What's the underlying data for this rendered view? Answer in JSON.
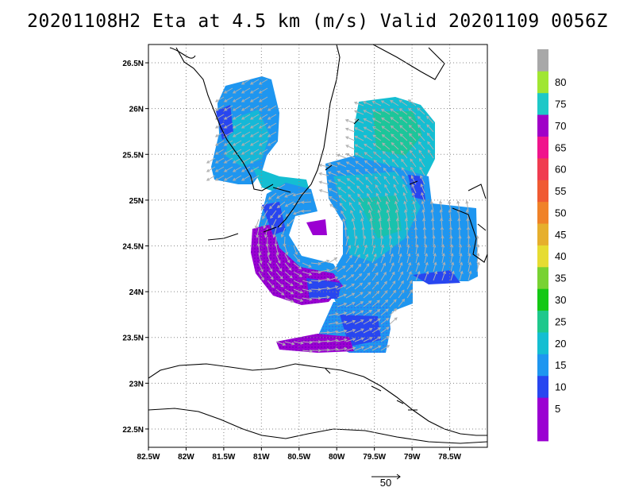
{
  "title": "20201108H2 Eta at 4.5 km (m/s) Valid 20201109 0056Z",
  "map": {
    "lon_range": [
      -82.5,
      -78.0
    ],
    "lat_range": [
      22.3,
      26.7
    ],
    "x_ticks": [
      {
        "lon": -82.5,
        "label": "82.5W"
      },
      {
        "lon": -82.0,
        "label": "82W"
      },
      {
        "lon": -81.5,
        "label": "81.5W"
      },
      {
        "lon": -81.0,
        "label": "81W"
      },
      {
        "lon": -80.5,
        "label": "80.5W"
      },
      {
        "lon": -80.0,
        "label": "80W"
      },
      {
        "lon": -79.5,
        "label": "79.5W"
      },
      {
        "lon": -79.0,
        "label": "79W"
      },
      {
        "lon": -78.5,
        "label": "78.5W"
      }
    ],
    "y_ticks": [
      {
        "lat": 26.5,
        "label": "26.5N"
      },
      {
        "lat": 26.0,
        "label": "26N"
      },
      {
        "lat": 25.5,
        "label": "25.5N"
      },
      {
        "lat": 25.0,
        "label": "25N"
      },
      {
        "lat": 24.5,
        "label": "24.5N"
      },
      {
        "lat": 24.0,
        "label": "24N"
      },
      {
        "lat": 23.5,
        "label": "23.5N"
      },
      {
        "lat": 23.0,
        "label": "23N"
      },
      {
        "lat": 22.5,
        "label": "22.5N"
      }
    ],
    "grid": "dotted"
  },
  "reference_vector": {
    "label": "50"
  },
  "colorbar": {
    "bands": [
      {
        "label": "",
        "color": "#9b00d2"
      },
      {
        "label": "5",
        "color": "#9b00d2"
      },
      {
        "label": "10",
        "color": "#2846f0"
      },
      {
        "label": "15",
        "color": "#1e96f0"
      },
      {
        "label": "20",
        "color": "#14bed2"
      },
      {
        "label": "25",
        "color": "#1ec88c"
      },
      {
        "label": "30",
        "color": "#14c814"
      },
      {
        "label": "35",
        "color": "#78d232"
      },
      {
        "label": "40",
        "color": "#e6dc32"
      },
      {
        "label": "45",
        "color": "#e6af2d"
      },
      {
        "label": "50",
        "color": "#f08228"
      },
      {
        "label": "55",
        "color": "#f05a32"
      },
      {
        "label": "60",
        "color": "#f03c50"
      },
      {
        "label": "65",
        "color": "#f0148c"
      },
      {
        "label": "70",
        "color": "#a000c8"
      },
      {
        "label": "75",
        "color": "#1ec8c8"
      },
      {
        "label": "80",
        "color": "#a0e632"
      },
      {
        "label": "",
        "color": "#a8a8a8"
      }
    ]
  }
}
